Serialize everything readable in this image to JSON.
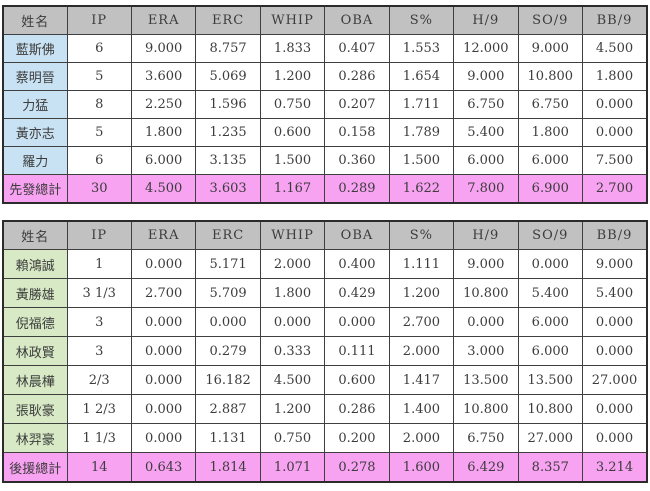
{
  "colors": {
    "header_bg": "#c1c1c1",
    "starter_name_bg": "#c9e2f3",
    "reliever_name_bg": "#d7e9c5",
    "total_row_bg": "#f8a2f2",
    "border_inner": "#3f3f3f",
    "border_outer": "#2b2b2b",
    "text": "#3c3c3c",
    "page_bg": "#ffffff"
  },
  "chart_data": [
    {
      "type": "table",
      "columns": [
        "姓名",
        "IP",
        "ERA",
        "ERC",
        "WHIP",
        "OBA",
        "S%",
        "H/9",
        "SO/9",
        "BB/9"
      ],
      "rows": [
        [
          "藍斯佛",
          "6",
          "9.000",
          "8.757",
          "1.833",
          "0.407",
          "1.553",
          "12.000",
          "9.000",
          "4.500"
        ],
        [
          "蔡明晉",
          "5",
          "3.600",
          "5.069",
          "1.200",
          "0.286",
          "1.654",
          "9.000",
          "10.800",
          "1.800"
        ],
        [
          "力猛",
          "8",
          "2.250",
          "1.596",
          "0.750",
          "0.207",
          "1.711",
          "6.750",
          "6.750",
          "0.000"
        ],
        [
          "黃亦志",
          "5",
          "1.800",
          "1.235",
          "0.600",
          "0.158",
          "1.789",
          "5.400",
          "1.800",
          "0.000"
        ],
        [
          "羅力",
          "6",
          "6.000",
          "3.135",
          "1.500",
          "0.360",
          "1.500",
          "6.000",
          "6.000",
          "7.500"
        ]
      ],
      "total_row": [
        "先發總計",
        "30",
        "4.500",
        "3.603",
        "1.167",
        "0.289",
        "1.622",
        "7.800",
        "6.900",
        "2.700"
      ]
    },
    {
      "type": "table",
      "columns": [
        "姓名",
        "IP",
        "ERA",
        "ERC",
        "WHIP",
        "OBA",
        "S%",
        "H/9",
        "SO/9",
        "BB/9"
      ],
      "rows": [
        [
          "賴鴻誠",
          "1",
          "0.000",
          "5.171",
          "2.000",
          "0.400",
          "1.111",
          "9.000",
          "0.000",
          "9.000"
        ],
        [
          "黃勝雄",
          "3 1/3",
          "2.700",
          "5.709",
          "1.800",
          "0.429",
          "1.200",
          "10.800",
          "5.400",
          "5.400"
        ],
        [
          "倪福德",
          "3",
          "0.000",
          "0.000",
          "0.000",
          "0.000",
          "2.700",
          "0.000",
          "6.000",
          "0.000"
        ],
        [
          "林政賢",
          "3",
          "0.000",
          "0.279",
          "0.333",
          "0.111",
          "2.000",
          "3.000",
          "6.000",
          "0.000"
        ],
        [
          "林晨樺",
          "2/3",
          "0.000",
          "16.182",
          "4.500",
          "0.600",
          "1.417",
          "13.500",
          "13.500",
          "27.000"
        ],
        [
          "張耿豪",
          "1 2/3",
          "0.000",
          "2.887",
          "1.200",
          "0.286",
          "1.400",
          "10.800",
          "10.800",
          "0.000"
        ],
        [
          "林羿豪",
          "1 1/3",
          "0.000",
          "1.131",
          "0.750",
          "0.200",
          "2.000",
          "6.750",
          "27.000",
          "0.000"
        ]
      ],
      "total_row": [
        "後援總計",
        "14",
        "0.643",
        "1.814",
        "1.071",
        "0.278",
        "1.600",
        "6.429",
        "8.357",
        "3.214"
      ]
    }
  ]
}
